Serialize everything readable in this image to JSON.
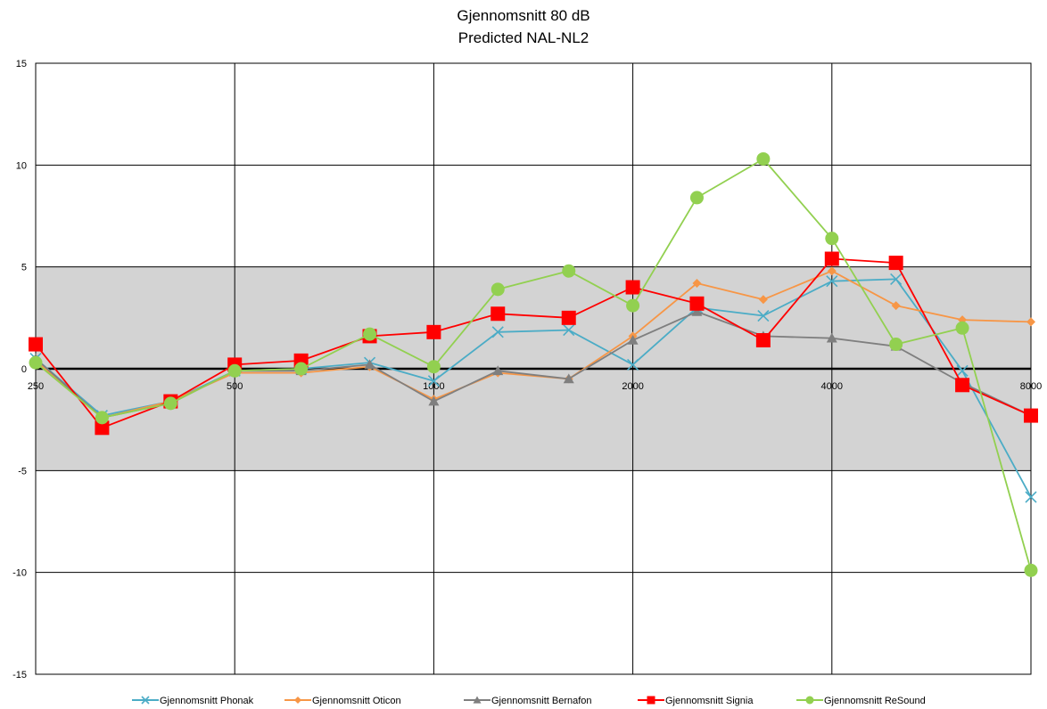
{
  "chart_data": {
    "type": "line",
    "title": "Gjennomsnitt 80 dB",
    "subtitle": "Predicted NAL-NL2",
    "xlabel": "",
    "ylabel": "",
    "x_scale": "log",
    "xlim": [
      250,
      8000
    ],
    "ylim": [
      -15,
      15
    ],
    "y_ticks": [
      -15,
      -10,
      -5,
      0,
      5,
      10,
      15
    ],
    "x_tick_labels": [
      {
        "value": 250,
        "label": "250"
      },
      {
        "value": 500,
        "label": "500"
      },
      {
        "value": 1000,
        "label": "1000"
      },
      {
        "value": 2000,
        "label": "2000"
      },
      {
        "value": 4000,
        "label": "4000"
      },
      {
        "value": 8000,
        "label": "8000"
      }
    ],
    "x_gridlines": [
      500,
      1000,
      2000,
      4000
    ],
    "shaded_band": {
      "from": -5,
      "to": 5,
      "color": "#d3d3d3"
    },
    "grid": true,
    "legend_position": "bottom",
    "x": [
      250,
      315,
      400,
      500,
      630,
      800,
      1000,
      1250,
      1600,
      2000,
      2500,
      3150,
      4000,
      5000,
      6300,
      8000
    ],
    "series": [
      {
        "name": "Gjennomsnitt Phonak",
        "color": "#4bacc6",
        "marker": "x",
        "values": [
          0.5,
          -2.3,
          -1.6,
          -0.1,
          0.0,
          0.3,
          -0.6,
          1.8,
          1.9,
          0.2,
          3.0,
          2.6,
          4.3,
          4.4,
          -0.1,
          -6.3
        ]
      },
      {
        "name": "Gjennomsnitt Oticon",
        "color": "#f79646",
        "marker": "diamond",
        "values": [
          0.4,
          -2.4,
          -1.6,
          -0.2,
          -0.2,
          0.1,
          -1.5,
          -0.2,
          -0.5,
          1.6,
          4.2,
          3.4,
          4.8,
          3.1,
          2.4,
          2.3
        ]
      },
      {
        "name": "Gjennomsnitt Bernafon",
        "color": "#7f7f7f",
        "marker": "triangle",
        "values": [
          0.5,
          -2.4,
          -1.7,
          -0.1,
          -0.1,
          0.2,
          -1.6,
          -0.1,
          -0.5,
          1.4,
          2.8,
          1.6,
          1.5,
          1.1,
          -0.7,
          -2.3
        ]
      },
      {
        "name": "Gjennomsnitt Signia",
        "color": "#ff0000",
        "marker": "square",
        "values": [
          1.2,
          -2.9,
          -1.6,
          0.2,
          0.4,
          1.6,
          1.8,
          2.7,
          2.5,
          4.0,
          3.2,
          1.4,
          5.4,
          5.2,
          -0.8,
          -2.3
        ]
      },
      {
        "name": "Gjennomsnitt ReSound",
        "color": "#92d050",
        "marker": "circle",
        "values": [
          0.3,
          -2.4,
          -1.7,
          -0.1,
          0.0,
          1.7,
          0.1,
          3.9,
          4.8,
          3.1,
          8.4,
          10.3,
          6.4,
          1.2,
          2.0,
          -9.9
        ]
      }
    ]
  }
}
